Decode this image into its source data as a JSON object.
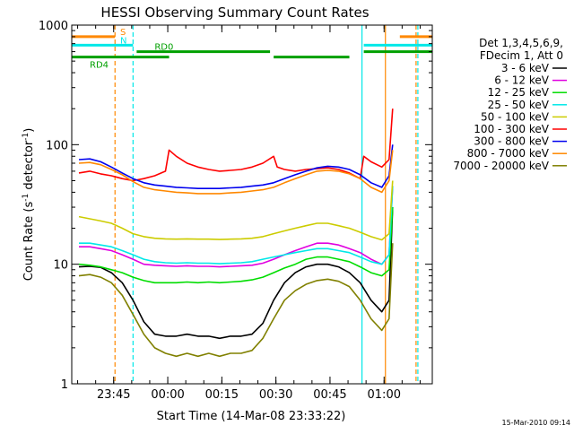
{
  "chart_data": {
    "type": "line",
    "title": "HESSI Observing Summary Count Rates",
    "xlabel": "Start Time (14-Mar-08 23:33:22)",
    "ylabel_main": "Count Rate (s",
    "ylabel_sup1": "-1",
    "ylabel_mid": " detector",
    "ylabel_sup2": "-1",
    "ylabel_end": ")",
    "y_scale": "log",
    "ylim": [
      1,
      1000
    ],
    "xlim_minutes": [
      0,
      100
    ],
    "y_ticks": [
      {
        "value": 1,
        "label": "1"
      },
      {
        "value": 10,
        "label": "10"
      },
      {
        "value": 100,
        "label": "100"
      },
      {
        "value": 1000,
        "label": "1000"
      }
    ],
    "x_ticks": [
      {
        "minute": 11.63,
        "label": "23:45"
      },
      {
        "minute": 26.63,
        "label": "00:00"
      },
      {
        "minute": 41.63,
        "label": "00:15"
      },
      {
        "minute": 56.63,
        "label": "00:30"
      },
      {
        "minute": 71.63,
        "label": "00:45"
      },
      {
        "minute": 86.63,
        "label": "01:00"
      }
    ],
    "legend_header": [
      "Det 1,3,4,5,6,9,",
      "FDecim 1, Att 0"
    ],
    "legend_placement": "right",
    "series": [
      {
        "name": "3 - 6 keV",
        "color": "#000000",
        "x": [
          2,
          5,
          8,
          11,
          14,
          17,
          20,
          23,
          26,
          29,
          32,
          35,
          38,
          41,
          44,
          47,
          50,
          53,
          56,
          59,
          62,
          65,
          68,
          71,
          74,
          77,
          80,
          83,
          86,
          88,
          89
        ],
        "y": [
          9.5,
          9.6,
          9.4,
          8.5,
          7,
          5,
          3.3,
          2.6,
          2.5,
          2.5,
          2.6,
          2.5,
          2.5,
          2.4,
          2.5,
          2.5,
          2.6,
          3.2,
          5,
          7,
          8.5,
          9.5,
          10,
          10,
          9.5,
          8.5,
          7,
          5,
          4,
          5,
          30
        ]
      },
      {
        "name": "6 - 12 keV",
        "color": "#e000e0",
        "x": [
          2,
          5,
          8,
          11,
          14,
          17,
          20,
          23,
          26,
          29,
          32,
          35,
          38,
          41,
          44,
          47,
          50,
          53,
          56,
          59,
          62,
          65,
          68,
          71,
          74,
          77,
          80,
          83,
          86,
          88,
          89
        ],
        "y": [
          14,
          14,
          13.5,
          13,
          12,
          11,
          10,
          9.8,
          9.7,
          9.6,
          9.7,
          9.6,
          9.6,
          9.5,
          9.6,
          9.7,
          9.8,
          10.2,
          11,
          12,
          13,
          14,
          15,
          15,
          14.5,
          13.5,
          12.5,
          11,
          10,
          12,
          45
        ]
      },
      {
        "name": "12 - 25 keV",
        "color": "#00dd00",
        "x": [
          2,
          5,
          8,
          11,
          14,
          17,
          20,
          23,
          26,
          29,
          32,
          35,
          38,
          41,
          44,
          47,
          50,
          53,
          56,
          59,
          62,
          65,
          68,
          71,
          74,
          77,
          80,
          83,
          86,
          88,
          89
        ],
        "y": [
          10,
          9.8,
          9.5,
          9,
          8.5,
          7.8,
          7.3,
          7,
          7,
          7,
          7.1,
          7,
          7.1,
          7,
          7.1,
          7.2,
          7.4,
          7.8,
          8.5,
          9.3,
          10,
          11,
          11.5,
          11.5,
          11,
          10.5,
          9.5,
          8.5,
          8,
          9,
          30
        ]
      },
      {
        "name": "25 - 50 keV",
        "color": "#00e8e8",
        "x": [
          2,
          5,
          8,
          11,
          14,
          17,
          20,
          23,
          26,
          29,
          32,
          35,
          38,
          41,
          44,
          47,
          50,
          53,
          56,
          59,
          62,
          65,
          68,
          71,
          74,
          77,
          80,
          83,
          86,
          88,
          89
        ],
        "y": [
          15,
          15,
          14.5,
          14,
          13,
          12,
          11,
          10.5,
          10.3,
          10.2,
          10.3,
          10.2,
          10.2,
          10.1,
          10.2,
          10.3,
          10.5,
          11,
          11.5,
          12,
          12.5,
          13,
          13.5,
          13.5,
          13,
          12.5,
          11.5,
          10.5,
          10,
          12,
          45
        ]
      },
      {
        "name": "50 - 100 keV",
        "color": "#cccc00",
        "x": [
          2,
          5,
          8,
          11,
          14,
          17,
          20,
          23,
          26,
          29,
          32,
          35,
          38,
          41,
          44,
          47,
          50,
          53,
          56,
          59,
          62,
          65,
          68,
          71,
          74,
          77,
          80,
          83,
          86,
          88,
          89
        ],
        "y": [
          25,
          24,
          23,
          22,
          20,
          18,
          17,
          16.5,
          16.3,
          16.2,
          16.3,
          16.2,
          16.2,
          16.1,
          16.2,
          16.3,
          16.5,
          17,
          18,
          19,
          20,
          21,
          22,
          22,
          21,
          20,
          18.5,
          17,
          16,
          18,
          50
        ]
      },
      {
        "name": "100 - 300 keV",
        "color": "#ff0000",
        "x": [
          2,
          5,
          8,
          11,
          14,
          17,
          20,
          23,
          26,
          27,
          29,
          32,
          35,
          38,
          41,
          44,
          47,
          50,
          53,
          56,
          57,
          59,
          62,
          65,
          68,
          71,
          74,
          77,
          80,
          81,
          83,
          86,
          88,
          89
        ],
        "y": [
          58,
          60,
          57,
          55,
          52,
          50,
          52,
          55,
          60,
          90,
          80,
          70,
          65,
          62,
          60,
          61,
          62,
          65,
          70,
          80,
          65,
          62,
          60,
          62,
          63,
          64,
          62,
          58,
          52,
          80,
          72,
          65,
          75,
          200
        ]
      },
      {
        "name": "300 - 800 keV",
        "color": "#0000ee",
        "x": [
          2,
          5,
          8,
          11,
          14,
          17,
          20,
          23,
          26,
          29,
          32,
          35,
          38,
          41,
          44,
          47,
          50,
          53,
          56,
          59,
          62,
          65,
          68,
          71,
          74,
          77,
          80,
          83,
          86,
          88,
          89
        ],
        "y": [
          75,
          76,
          72,
          65,
          58,
          52,
          48,
          46,
          45,
          44,
          43.5,
          43,
          43,
          43,
          43.5,
          44,
          45,
          46,
          48,
          52,
          56,
          60,
          64,
          66,
          65,
          62,
          56,
          48,
          44,
          55,
          100
        ]
      },
      {
        "name": "800 - 7000 keV",
        "color": "#ff8800",
        "x": [
          2,
          5,
          8,
          11,
          14,
          17,
          20,
          23,
          26,
          29,
          32,
          35,
          38,
          41,
          44,
          47,
          50,
          53,
          56,
          59,
          62,
          65,
          68,
          71,
          74,
          77,
          80,
          83,
          86,
          88,
          89
        ],
        "y": [
          70,
          71,
          68,
          62,
          56,
          49,
          44,
          42,
          41,
          40,
          39.5,
          39,
          39,
          39,
          39.5,
          40,
          41,
          42,
          44,
          48,
          52,
          56,
          60,
          61,
          60,
          57,
          52,
          44,
          40,
          50,
          90
        ]
      },
      {
        "name": "7000 - 20000 keV",
        "color": "#808000",
        "x": [
          2,
          5,
          8,
          11,
          14,
          17,
          20,
          23,
          26,
          29,
          32,
          35,
          38,
          41,
          44,
          47,
          50,
          53,
          56,
          59,
          62,
          65,
          68,
          71,
          74,
          77,
          80,
          83,
          86,
          88,
          89
        ],
        "y": [
          8,
          8.2,
          7.8,
          7,
          5.5,
          3.8,
          2.6,
          2,
          1.8,
          1.7,
          1.8,
          1.7,
          1.8,
          1.7,
          1.8,
          1.8,
          1.9,
          2.4,
          3.5,
          5,
          6,
          6.8,
          7.3,
          7.5,
          7.2,
          6.5,
          5,
          3.5,
          2.8,
          3.5,
          15
        ]
      }
    ],
    "state_bars": [
      {
        "label": "S",
        "color": "#ff8800",
        "value": 800,
        "segments": [
          [
            0,
            12
          ],
          [
            91,
            100
          ]
        ]
      },
      {
        "label": "N",
        "color": "#00e8e8",
        "value": 680,
        "segments": [
          [
            0,
            17
          ],
          [
            81,
            100
          ]
        ]
      },
      {
        "label": "RD0",
        "color": "#00a000",
        "value": 600,
        "segments": [
          [
            18,
            55
          ],
          [
            81,
            100
          ]
        ]
      },
      {
        "label": "RD4",
        "color": "#00a000",
        "value": 540,
        "segments": [
          [
            0,
            27
          ],
          [
            56,
            77
          ]
        ]
      }
    ],
    "vertical_markers": [
      {
        "minute": 12,
        "color": "#ff8800",
        "style": "dashed"
      },
      {
        "minute": 17,
        "color": "#00e8e8",
        "style": "dashed"
      },
      {
        "minute": 80.5,
        "color": "#00e8e8",
        "style": "solid"
      },
      {
        "minute": 87,
        "color": "#ff8800",
        "style": "solid"
      },
      {
        "minute": 95.5,
        "color": "#ff8800",
        "style": "dashed"
      },
      {
        "minute": 96,
        "color": "#00e8e8",
        "style": "dashed"
      }
    ],
    "footer_timestamp": "15-Mar-2010 09:14"
  }
}
